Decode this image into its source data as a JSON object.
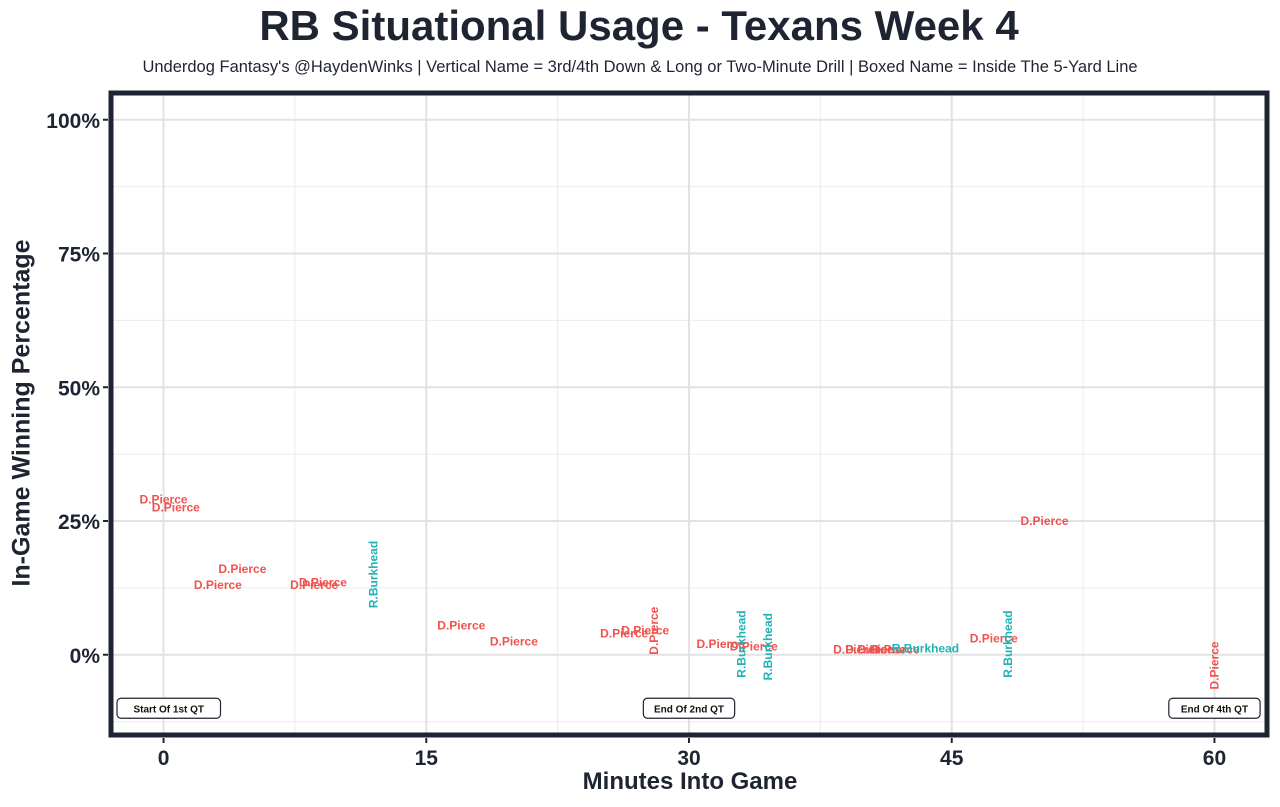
{
  "chart_data": {
    "type": "scatter",
    "title": "RB Situational Usage - Texans Week 4",
    "subtitle": "Underdog Fantasy's @HaydenWinks | Vertical Name = 3rd/4th Down & Long or Two-Minute Drill | Boxed Name = Inside The 5-Yard Line",
    "xlabel": "Minutes Into Game",
    "ylabel": "In-Game Winning Percentage",
    "xlim": [
      -3,
      63
    ],
    "ylim": [
      -15,
      105
    ],
    "x_ticks": [
      0,
      15,
      30,
      45,
      60
    ],
    "x_tick_labels": [
      "0",
      "15",
      "30",
      "45",
      "60"
    ],
    "y_ticks": [
      0,
      25,
      50,
      75,
      100
    ],
    "y_tick_labels": [
      "0%",
      "25%",
      "50%",
      "75%",
      "100%"
    ],
    "grid": true,
    "series": [
      {
        "name": "D.Pierce",
        "color": "#f0524f",
        "points": [
          {
            "x": 0.0,
            "y": 29,
            "label": "D.Pierce",
            "vertical": false
          },
          {
            "x": 0.7,
            "y": 27.5,
            "label": "D.Pierce",
            "vertical": false
          },
          {
            "x": 4.5,
            "y": 16,
            "label": "D.Pierce",
            "vertical": false
          },
          {
            "x": 3.1,
            "y": 13,
            "label": "D.Pierce",
            "vertical": false
          },
          {
            "x": 9.1,
            "y": 13.5,
            "label": "D.Pierce",
            "vertical": false
          },
          {
            "x": 8.6,
            "y": 13,
            "label": "D.Pierce",
            "vertical": false
          },
          {
            "x": 17.0,
            "y": 5.5,
            "label": "D.Pierce",
            "vertical": false
          },
          {
            "x": 20.0,
            "y": 2.5,
            "label": "D.Pierce",
            "vertical": false
          },
          {
            "x": 26.3,
            "y": 4,
            "label": "D.Pierce",
            "vertical": false
          },
          {
            "x": 27.5,
            "y": 4.5,
            "label": "D.Pierce",
            "vertical": false
          },
          {
            "x": 28.0,
            "y": 4.5,
            "label": "D.Pierce",
            "vertical": true
          },
          {
            "x": 31.8,
            "y": 2,
            "label": "D.Pierce",
            "vertical": false
          },
          {
            "x": 33.7,
            "y": 1.5,
            "label": "D.Pierce",
            "vertical": false
          },
          {
            "x": 39.6,
            "y": 1,
            "label": "D.Pierce",
            "vertical": false
          },
          {
            "x": 40.3,
            "y": 1,
            "label": "D.Pierce",
            "vertical": false
          },
          {
            "x": 41.0,
            "y": 1,
            "label": "D.Pierce",
            "vertical": false
          },
          {
            "x": 41.8,
            "y": 1,
            "label": "D.Pierce",
            "vertical": false
          },
          {
            "x": 47.4,
            "y": 3,
            "label": "D.Pierce",
            "vertical": false
          },
          {
            "x": 50.3,
            "y": 25,
            "label": "D.Pierce",
            "vertical": false
          },
          {
            "x": 60.0,
            "y": -2,
            "label": "D.Pierce",
            "vertical": true
          }
        ]
      },
      {
        "name": "R.Burkhead",
        "color": "#22b2b5",
        "points": [
          {
            "x": 12.0,
            "y": 15,
            "label": "R.Burkhead",
            "vertical": true
          },
          {
            "x": 33.0,
            "y": 2,
            "label": "R.Burkhead",
            "vertical": true
          },
          {
            "x": 34.5,
            "y": 1.5,
            "label": "R.Burkhead",
            "vertical": true
          },
          {
            "x": 43.5,
            "y": 1.2,
            "label": "R.Burkhead",
            "vertical": false
          },
          {
            "x": 48.2,
            "y": 2,
            "label": "R.Burkhead",
            "vertical": true
          }
        ]
      }
    ],
    "annotations": [
      {
        "x": 0,
        "y": -10,
        "text": "Start Of 1st QT"
      },
      {
        "x": 30,
        "y": -10,
        "text": "End Of 2nd QT"
      },
      {
        "x": 60,
        "y": -10,
        "text": "End Of 4th QT"
      }
    ]
  }
}
